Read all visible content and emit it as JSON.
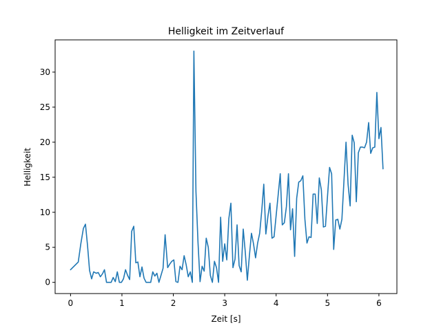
{
  "chart_data": {
    "type": "line",
    "title": "Helligkeit im Zeitverlauf",
    "xlabel": "Zeit [s]",
    "ylabel": "Helligkeit",
    "xlim": [
      -0.3,
      6.35
    ],
    "ylim": [
      -1.6,
      34.6
    ],
    "xticks": [
      0,
      1,
      2,
      3,
      4,
      5,
      6
    ],
    "yticks": [
      0,
      5,
      10,
      15,
      20,
      25,
      30
    ],
    "grid": false,
    "series": [
      {
        "name": "Helligkeit",
        "color": "#1f77b4",
        "x": [
          0.0,
          0.15,
          0.2,
          0.25,
          0.29,
          0.33,
          0.37,
          0.41,
          0.45,
          0.5,
          0.54,
          0.58,
          0.62,
          0.66,
          0.7,
          0.74,
          0.79,
          0.83,
          0.87,
          0.91,
          0.95,
          0.99,
          1.03,
          1.07,
          1.11,
          1.15,
          1.19,
          1.23,
          1.27,
          1.31,
          1.35,
          1.39,
          1.43,
          1.47,
          1.51,
          1.56,
          1.6,
          1.64,
          1.68,
          1.72,
          1.76,
          1.8,
          1.84,
          1.89,
          1.93,
          1.97,
          2.01,
          2.05,
          2.09,
          2.13,
          2.17,
          2.21,
          2.25,
          2.29,
          2.33,
          2.37,
          2.4,
          2.44,
          2.48,
          2.52,
          2.56,
          2.6,
          2.64,
          2.68,
          2.72,
          2.76,
          2.8,
          2.84,
          2.88,
          2.92,
          2.96,
          3.0,
          3.04,
          3.08,
          3.12,
          3.16,
          3.2,
          3.24,
          3.28,
          3.32,
          3.36,
          3.4,
          3.44,
          3.48,
          3.52,
          3.56,
          3.6,
          3.64,
          3.68,
          3.72,
          3.76,
          3.8,
          3.84,
          3.88,
          3.92,
          3.96,
          4.0,
          4.04,
          4.08,
          4.12,
          4.16,
          4.2,
          4.24,
          4.28,
          4.32,
          4.36,
          4.4,
          4.44,
          4.48,
          4.52,
          4.56,
          4.6,
          4.64,
          4.68,
          4.72,
          4.76,
          4.8,
          4.84,
          4.88,
          4.92,
          4.96,
          5.0,
          5.04,
          5.08,
          5.12,
          5.16,
          5.2,
          5.24,
          5.28,
          5.32,
          5.36,
          5.4,
          5.44,
          5.48,
          5.52,
          5.56,
          5.6,
          5.64,
          5.68,
          5.72,
          5.76,
          5.8,
          5.84,
          5.88,
          5.92,
          5.96,
          6.0,
          6.04,
          6.08
        ],
        "y": [
          1.8,
          2.9,
          5.5,
          7.7,
          8.3,
          5.3,
          1.7,
          0.5,
          1.5,
          1.3,
          1.4,
          0.8,
          1.2,
          1.8,
          0.0,
          0.0,
          0.0,
          0.7,
          0.1,
          1.5,
          0.0,
          0.0,
          0.5,
          1.8,
          1.0,
          0.4,
          7.3,
          8.0,
          2.8,
          2.9,
          0.8,
          2.2,
          0.6,
          0.0,
          0.0,
          0.0,
          1.5,
          0.9,
          1.3,
          0.0,
          1.0,
          2.0,
          6.8,
          2.1,
          2.6,
          3.0,
          3.2,
          0.1,
          0.0,
          2.3,
          1.8,
          3.8,
          2.5,
          0.8,
          1.5,
          0.0,
          33.0,
          13.0,
          5.7,
          0.1,
          2.3,
          1.6,
          6.3,
          5.0,
          1.0,
          0.0,
          3.0,
          2.1,
          0.0,
          9.3,
          3.0,
          5.5,
          3.2,
          9.1,
          11.3,
          2.1,
          3.3,
          8.2,
          2.4,
          1.5,
          7.6,
          4.3,
          0.3,
          3.8,
          7.0,
          5.5,
          3.5,
          5.6,
          7.0,
          10.2,
          14.0,
          6.9,
          9.4,
          11.3,
          6.3,
          6.5,
          9.5,
          12.5,
          15.5,
          8.2,
          8.5,
          10.8,
          15.5,
          7.5,
          10.5,
          3.7,
          12.0,
          14.3,
          14.5,
          15.2,
          9.0,
          5.6,
          6.5,
          6.4,
          12.6,
          12.6,
          8.4,
          14.9,
          13.2,
          7.9,
          8.0,
          12.3,
          16.4,
          15.5,
          4.7,
          8.9,
          9.0,
          7.6,
          9.0,
          14.5,
          20.0,
          14.0,
          10.9,
          21.0,
          19.9,
          11.5,
          18.5,
          19.3,
          19.3,
          19.2,
          20.0,
          22.8,
          18.4,
          19.2,
          19.3,
          27.1,
          20.5,
          22.1,
          16.2
        ]
      }
    ]
  }
}
